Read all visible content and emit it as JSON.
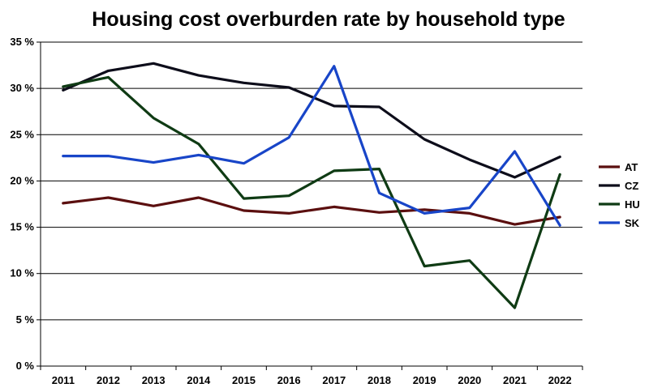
{
  "chart_data": {
    "type": "line",
    "title": "Housing cost overburden rate by household type",
    "xlabel": "",
    "ylabel": "",
    "categories": [
      "2011",
      "2012",
      "2013",
      "2014",
      "2015",
      "2016",
      "2017",
      "2018",
      "2019",
      "2020",
      "2021",
      "2022"
    ],
    "ylim": [
      0,
      35
    ],
    "yticks": [
      "0 %",
      "5 %",
      "10 %",
      "15 %",
      "20 %",
      "25 %",
      "30 %",
      "35 %"
    ],
    "grid": "horizontal",
    "legend_position": "right",
    "series": [
      {
        "name": "AT",
        "color": "#5b0f0f",
        "values": [
          17.6,
          18.2,
          17.3,
          18.2,
          16.8,
          16.5,
          17.2,
          16.6,
          16.9,
          16.5,
          15.3,
          16.1
        ]
      },
      {
        "name": "CZ",
        "color": "#0d0d1a",
        "values": [
          29.8,
          31.9,
          32.7,
          31.4,
          30.6,
          30.1,
          28.1,
          28.0,
          24.5,
          22.3,
          20.4,
          22.6
        ]
      },
      {
        "name": "HU",
        "color": "#0f3b14",
        "values": [
          30.2,
          31.2,
          26.8,
          24.0,
          18.1,
          18.4,
          21.1,
          21.3,
          10.8,
          11.4,
          6.3,
          20.7
        ]
      },
      {
        "name": "SK",
        "color": "#1845c8",
        "values": [
          22.7,
          22.7,
          22.0,
          22.8,
          21.9,
          24.7,
          32.4,
          18.7,
          16.5,
          17.1,
          23.2,
          15.2
        ]
      }
    ]
  }
}
